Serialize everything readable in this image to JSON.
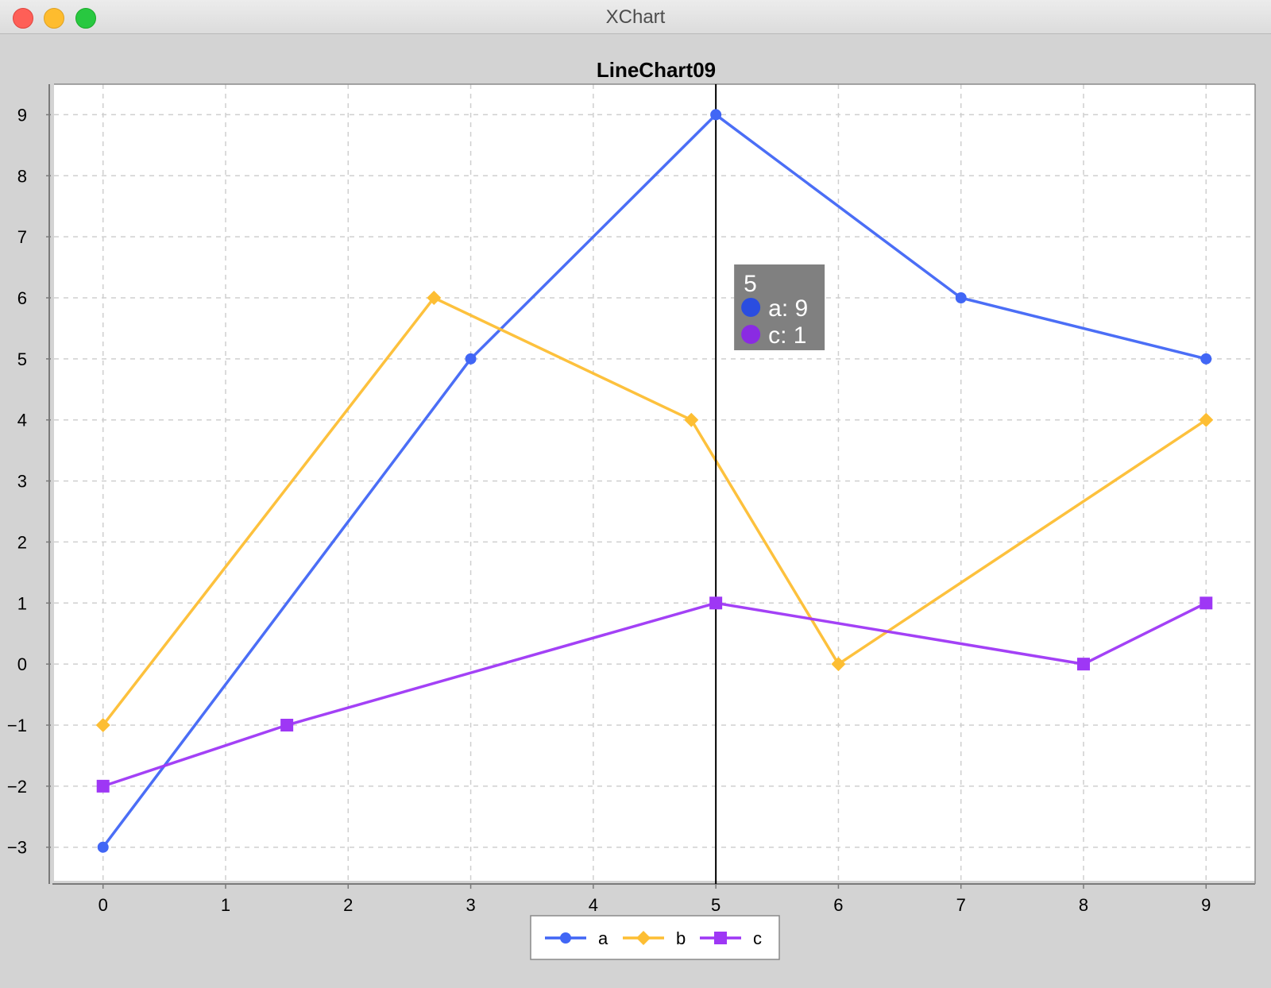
{
  "window": {
    "title": "XChart"
  },
  "chart_data": {
    "type": "line",
    "title": "LineChart09",
    "xlabel": "",
    "ylabel": "",
    "xlim": [
      -0.4,
      9.4
    ],
    "ylim": [
      -3.55,
      9.5
    ],
    "xticks": [
      "0",
      "1",
      "2",
      "3",
      "4",
      "5",
      "6",
      "7",
      "8",
      "9"
    ],
    "yticks": [
      "−3",
      "−2",
      "−1",
      "0",
      "1",
      "2",
      "3",
      "4",
      "5",
      "6",
      "7",
      "8",
      "9"
    ],
    "grid": true,
    "legend_position": "bottom-center",
    "series": [
      {
        "name": "a",
        "color": "#4166f5",
        "marker": "circle",
        "x": [
          0,
          3,
          5,
          7,
          9
        ],
        "y": [
          -3,
          5,
          9,
          6,
          5
        ]
      },
      {
        "name": "b",
        "color": "#fdbe33",
        "marker": "diamond",
        "x": [
          0,
          2.7,
          4.8,
          6,
          9
        ],
        "y": [
          -1,
          6,
          4,
          0,
          4
        ]
      },
      {
        "name": "c",
        "color": "#9e37f5",
        "marker": "square",
        "x": [
          0,
          1.5,
          5,
          8,
          9
        ],
        "y": [
          -2,
          -1,
          1,
          0,
          1
        ]
      }
    ],
    "crosshair": {
      "x": 5,
      "tooltip_title": "5",
      "tooltip_rows": [
        {
          "label": "a: 9",
          "color": "#2a4de0"
        },
        {
          "label": "c: 1",
          "color": "#8a2be2"
        }
      ]
    }
  }
}
